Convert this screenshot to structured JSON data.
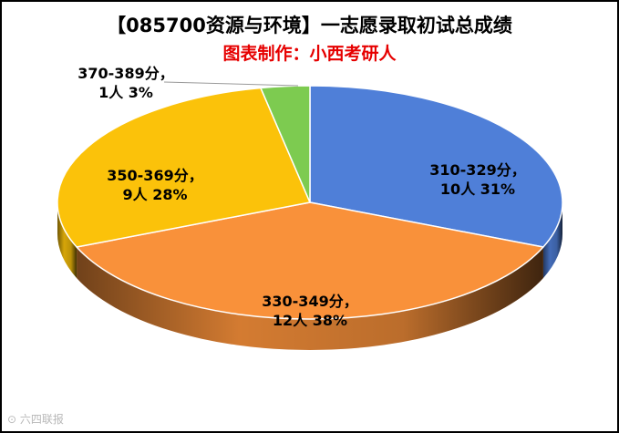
{
  "colors": {
    "title": "#000000",
    "subtitle": "#e60000",
    "slices": [
      "#4f7fd8",
      "#f9913a",
      "#fbc20a",
      "#7dcb50"
    ]
  },
  "watermark": "⊙ 六四联报",
  "chart_data": {
    "type": "pie",
    "title": "【085700资源与环境】一志愿录取初试总成绩",
    "subtitle": "图表制作：小西考研人",
    "categories": [
      "310-329分",
      "330-349分",
      "350-369分",
      "370-389分"
    ],
    "counts": [
      "10人",
      "12人",
      "9人",
      "1人"
    ],
    "percents": [
      "31%",
      "38%",
      "28%",
      "3%"
    ],
    "values": [
      10,
      12,
      9,
      1
    ],
    "labels": [
      {
        "range": "310-329分，",
        "detail": "10人 31%"
      },
      {
        "range": "330-349分，",
        "detail": "12人 38%"
      },
      {
        "range": "350-369分，",
        "detail": "9人 28%"
      },
      {
        "range": "370-389分，",
        "detail": "1人 3%"
      }
    ],
    "legend": "none",
    "style": "3d-pie"
  }
}
